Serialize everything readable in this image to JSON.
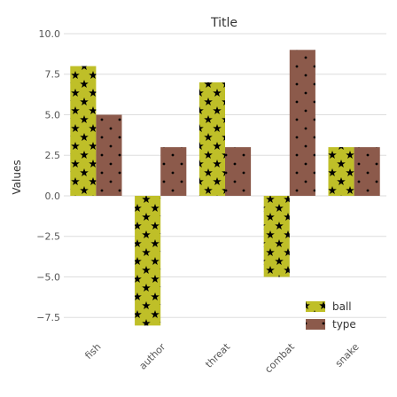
{
  "chart_data": {
    "type": "bar",
    "title": "Title",
    "xlabel": "",
    "ylabel": "Values",
    "categories": [
      "fish",
      "author",
      "threat",
      "combat",
      "snake"
    ],
    "series": [
      {
        "name": "ball",
        "values": [
          8,
          -8,
          7,
          -5,
          3
        ],
        "color": "#bfbf28"
      },
      {
        "name": "type",
        "values": [
          5,
          3,
          3,
          9,
          3
        ],
        "color": "#8c5a4b"
      }
    ],
    "ylim": [
      -8.8,
      10
    ],
    "yticks": [
      -7.5,
      -5,
      -2.5,
      0,
      2.5,
      5,
      7.5,
      10
    ],
    "ytick_labels": [
      "−7.5",
      "−5.0",
      "−2.5",
      "0.0",
      "2.5",
      "5.0",
      "7.5",
      "10.0"
    ],
    "grid": true,
    "legend_position": "bottom-right",
    "bar_pattern": "stars"
  }
}
